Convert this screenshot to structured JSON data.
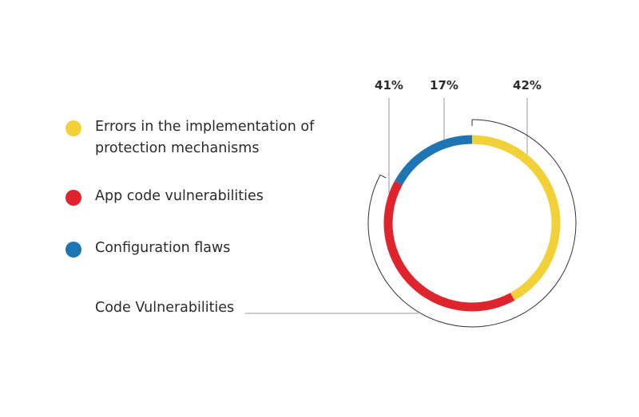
{
  "chart_data": {
    "type": "pie",
    "variant": "donut",
    "slices": [
      {
        "label": "Errors in the implementation of protection mechanisms",
        "value": 42,
        "display": "42%",
        "color": "#f2d038"
      },
      {
        "label": "App code vulnerabilities",
        "value": 41,
        "display": "41%",
        "color": "#e0242e"
      },
      {
        "label": "Configuration flaws",
        "value": 17,
        "display": "17%",
        "color": "#1f74b4"
      }
    ],
    "bracket_label": "Code Vulnerabilities",
    "legend_placement": "left"
  }
}
